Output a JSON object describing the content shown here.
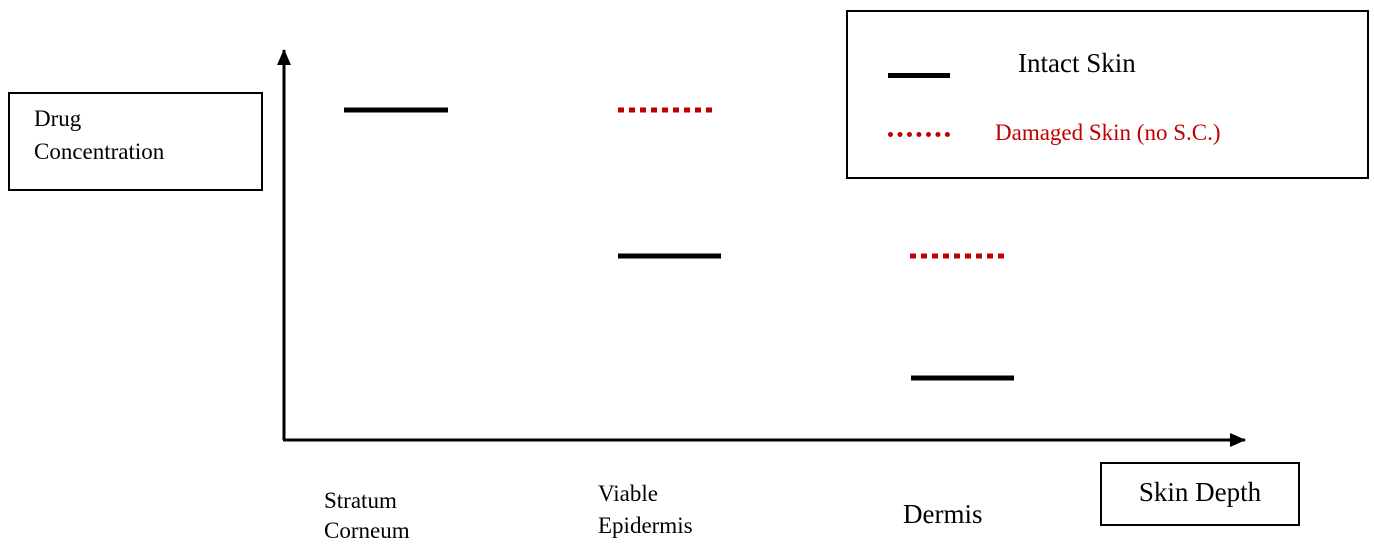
{
  "y_axis_label": "Drug\nConcentration",
  "x_axis_label": "Skin Depth",
  "categories": [
    "Stratum\nCorneum",
    "Viable\nEpidermis",
    "Dermis"
  ],
  "legend": {
    "intact": "Intact Skin",
    "damaged": "Damaged Skin (no S.C.)"
  },
  "colors": {
    "intact": "#000000",
    "damaged": "#c00000"
  },
  "levels": {
    "intact": [
      {
        "category": "Stratum\nCorneum",
        "level": "high"
      },
      {
        "category": "Viable\nEpidermis",
        "level": "medium"
      },
      {
        "category": "Dermis",
        "level": "low"
      }
    ],
    "damaged": [
      {
        "category": "Viable\nEpidermis",
        "level": "high"
      },
      {
        "category": "Dermis",
        "level": "medium"
      }
    ]
  }
}
